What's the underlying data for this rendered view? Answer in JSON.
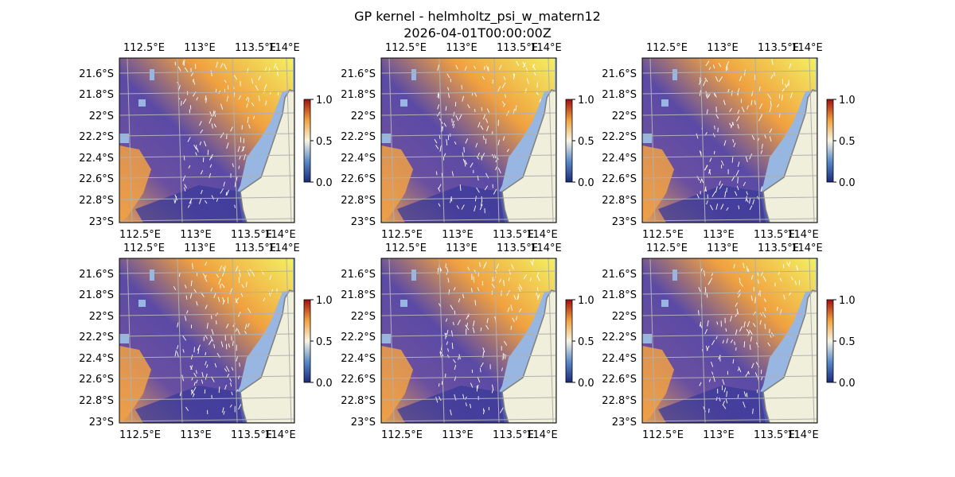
{
  "figure": {
    "title_line1": "GP kernel - helmholtz_psi_w_matern12",
    "title_line2": "2026-04-01T00:00:00Z"
  },
  "map": {
    "lon_ticks": [
      "112.5°E",
      "113°E",
      "113.5°E",
      "114°E"
    ],
    "lat_ticks": [
      "21.6°S",
      "21.8°S",
      "22°S",
      "22.2°S",
      "22.4°S",
      "22.6°S",
      "22.8°S",
      "23°S"
    ],
    "colors": {
      "land": "#efefdb",
      "water": "#97b6e1",
      "grid": "#b0b0b0",
      "coast": "#7f7f7f",
      "arrow": "#ffffff"
    }
  },
  "colorbar": {
    "ticks": [
      "0.0",
      "0.5",
      "1.0"
    ],
    "range": [
      0.0,
      1.0
    ],
    "colormap": [
      "#1a2a7a",
      "#5a8ac8",
      "#f7f5e4",
      "#f1a13f",
      "#a00f10"
    ]
  },
  "panels": [
    {
      "id": "panel-1"
    },
    {
      "id": "panel-2"
    },
    {
      "id": "panel-3"
    },
    {
      "id": "panel-4"
    },
    {
      "id": "panel-5"
    },
    {
      "id": "panel-6"
    }
  ]
}
